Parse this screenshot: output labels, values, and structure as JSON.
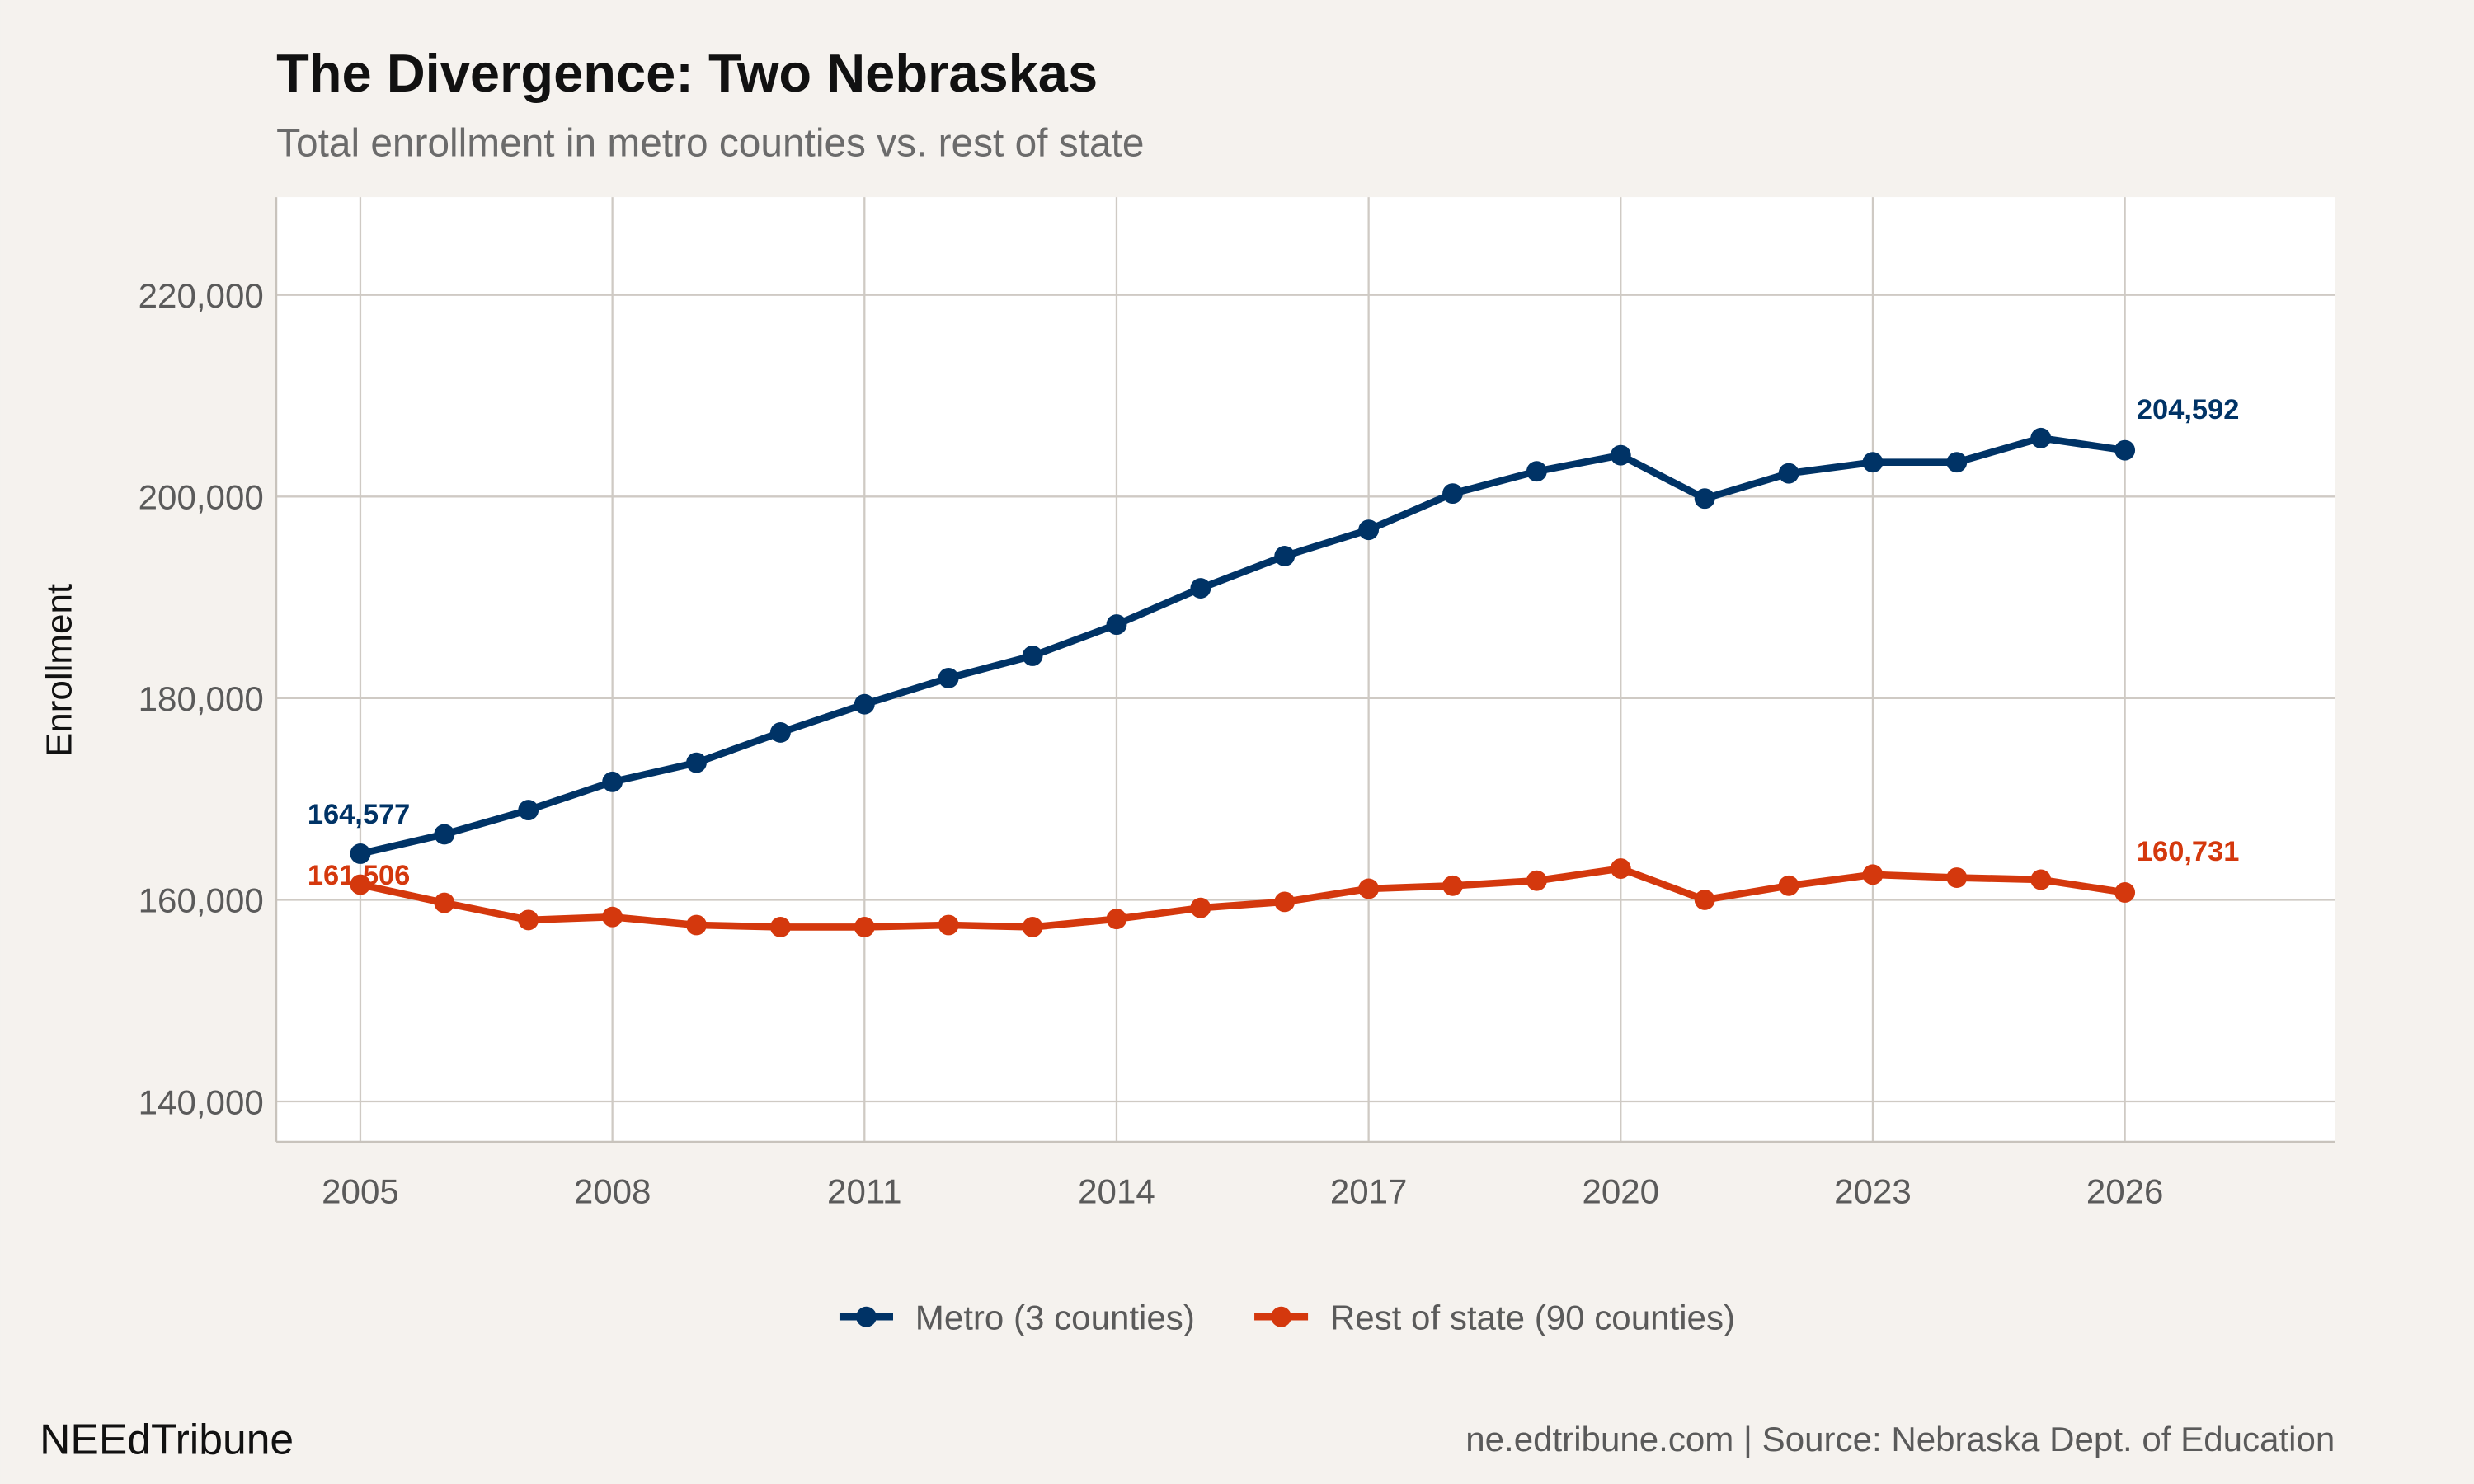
{
  "chart_data": {
    "type": "line",
    "title": "The Divergence: Two Nebraskas",
    "subtitle": "Total enrollment in metro counties vs. rest of state",
    "xlabel": "",
    "ylabel": "Enrollment",
    "xlim": [
      2004,
      2028.5
    ],
    "ylim": [
      136000,
      229700
    ],
    "xticks": [
      2005,
      2008,
      2011,
      2014,
      2017,
      2020,
      2023,
      2026
    ],
    "yticks": [
      140000,
      160000,
      180000,
      200000,
      220000
    ],
    "ytick_labels": [
      "140,000",
      "160,000",
      "180,000",
      "200,000",
      "220,000"
    ],
    "grid": true,
    "legend_position": "bottom",
    "x": [
      2005,
      2006,
      2007,
      2008,
      2009,
      2010,
      2011,
      2012,
      2013,
      2014,
      2015,
      2016,
      2017,
      2018,
      2019,
      2020,
      2021,
      2022,
      2023,
      2024,
      2025,
      2026
    ],
    "series": [
      {
        "name": "Metro (3 counties)",
        "color": "#003366",
        "values": [
          164577,
          166500,
          168900,
          171700,
          173600,
          176600,
          179400,
          182000,
          184200,
          187300,
          190900,
          194100,
          196700,
          200300,
          202500,
          204100,
          199800,
          202300,
          203400,
          203400,
          205800,
          204592
        ],
        "labels": [
          {
            "x": 2005,
            "text": "164,577"
          },
          {
            "x": 2026,
            "text": "204,592"
          }
        ]
      },
      {
        "name": "Rest of state (90 counties)",
        "color": "#D4380D",
        "values": [
          161506,
          159700,
          158000,
          158300,
          157500,
          157300,
          157300,
          157500,
          157300,
          158100,
          159200,
          159800,
          161100,
          161400,
          161900,
          163100,
          160000,
          161400,
          162500,
          162200,
          162000,
          160731
        ],
        "labels": [
          {
            "x": 2005,
            "text": "161,506"
          },
          {
            "x": 2026,
            "text": "160,731"
          }
        ]
      }
    ]
  },
  "footer": {
    "brand": "NEEdTribune",
    "caption": "ne.edtribune.com | Source: Nebraska Dept. of Education"
  }
}
